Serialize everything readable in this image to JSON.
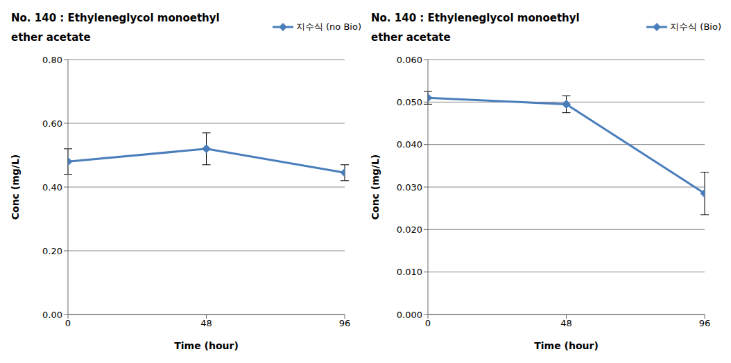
{
  "chart_data": [
    {
      "type": "line",
      "title": "No. 140 : Ethyleneglycol monoethyl ether acetate",
      "x_label": "Time (hour)",
      "y_label": "Conc (mg/L)",
      "x": [
        0,
        48,
        96
      ],
      "xlim": [
        0,
        96
      ],
      "xticks": [
        0,
        48,
        96
      ],
      "ylim": [
        0,
        0.8
      ],
      "yticks": [
        {
          "value": 0,
          "label": "0.00"
        },
        {
          "value": 0.2,
          "label": "0.20"
        },
        {
          "value": 0.4,
          "label": "0.40"
        },
        {
          "value": 0.6,
          "label": "0.60"
        },
        {
          "value": 0.8,
          "label": "0.80"
        }
      ],
      "grid": true,
      "legend": "upper right",
      "series": [
        {
          "name": "지수식 (no Bio)",
          "color": "#4a7ebb",
          "marker": "diamond",
          "values": [
            0.48,
            0.52,
            0.445
          ],
          "errors": [
            0.04,
            0.05,
            0.025
          ]
        }
      ]
    },
    {
      "type": "line",
      "title": "No. 140 : Ethyleneglycol monoethyl ether acetate",
      "x_label": "Time (hour)",
      "y_label": "Conc (mg/L)",
      "x": [
        0,
        48,
        96
      ],
      "xlim": [
        0,
        96
      ],
      "xticks": [
        0,
        48,
        96
      ],
      "ylim": [
        0,
        0.06
      ],
      "yticks": [
        {
          "value": 0,
          "label": "0.000"
        },
        {
          "value": 0.01,
          "label": "0.010"
        },
        {
          "value": 0.02,
          "label": "0.020"
        },
        {
          "value": 0.03,
          "label": "0.030"
        },
        {
          "value": 0.04,
          "label": "0.040"
        },
        {
          "value": 0.05,
          "label": "0.050"
        },
        {
          "value": 0.06,
          "label": "0.060"
        }
      ],
      "grid": true,
      "legend": "upper right",
      "series": [
        {
          "name": "지수식 (Bio)",
          "color": "#4a7ebb",
          "marker": "diamond",
          "values": [
            0.051,
            0.0495,
            0.0285
          ],
          "errors": [
            0.0015,
            0.002,
            0.005
          ]
        }
      ]
    }
  ]
}
